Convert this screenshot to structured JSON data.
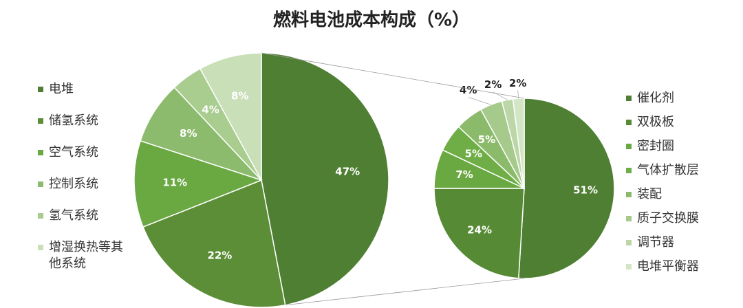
{
  "chart_data": [
    {
      "type": "pie",
      "title": "燃料电池成本构成（%）",
      "categories": [
        "电堆",
        "储氢系统",
        "空气系统",
        "控制系统",
        "氢气系统",
        "增湿换热等其他系统"
      ],
      "values": [
        47,
        22,
        11,
        8,
        4,
        8
      ],
      "value_labels": [
        "47%",
        "22%",
        "11%",
        "8%",
        "4%",
        "8%"
      ],
      "colors": [
        "#4f7f32",
        "#5b8e37",
        "#6aa842",
        "#8dbb6e",
        "#a9cc8f",
        "#c8dfb8"
      ]
    },
    {
      "type": "pie",
      "categories": [
        "催化剂",
        "双极板",
        "密封圈",
        "气体扩散层",
        "装配",
        "质子交换膜",
        "调节器",
        "电堆平衡器"
      ],
      "values": [
        51,
        24,
        7,
        5,
        5,
        4,
        2,
        2
      ],
      "value_labels": [
        "51%",
        "24%",
        "7%",
        "5%",
        "5%",
        "4%",
        "2%",
        "2%"
      ],
      "colors": [
        "#4f7f32",
        "#578a35",
        "#6aa842",
        "#6fae46",
        "#8bbb6a",
        "#a6c98c",
        "#bcd6a8",
        "#d2e5c4"
      ]
    }
  ]
}
